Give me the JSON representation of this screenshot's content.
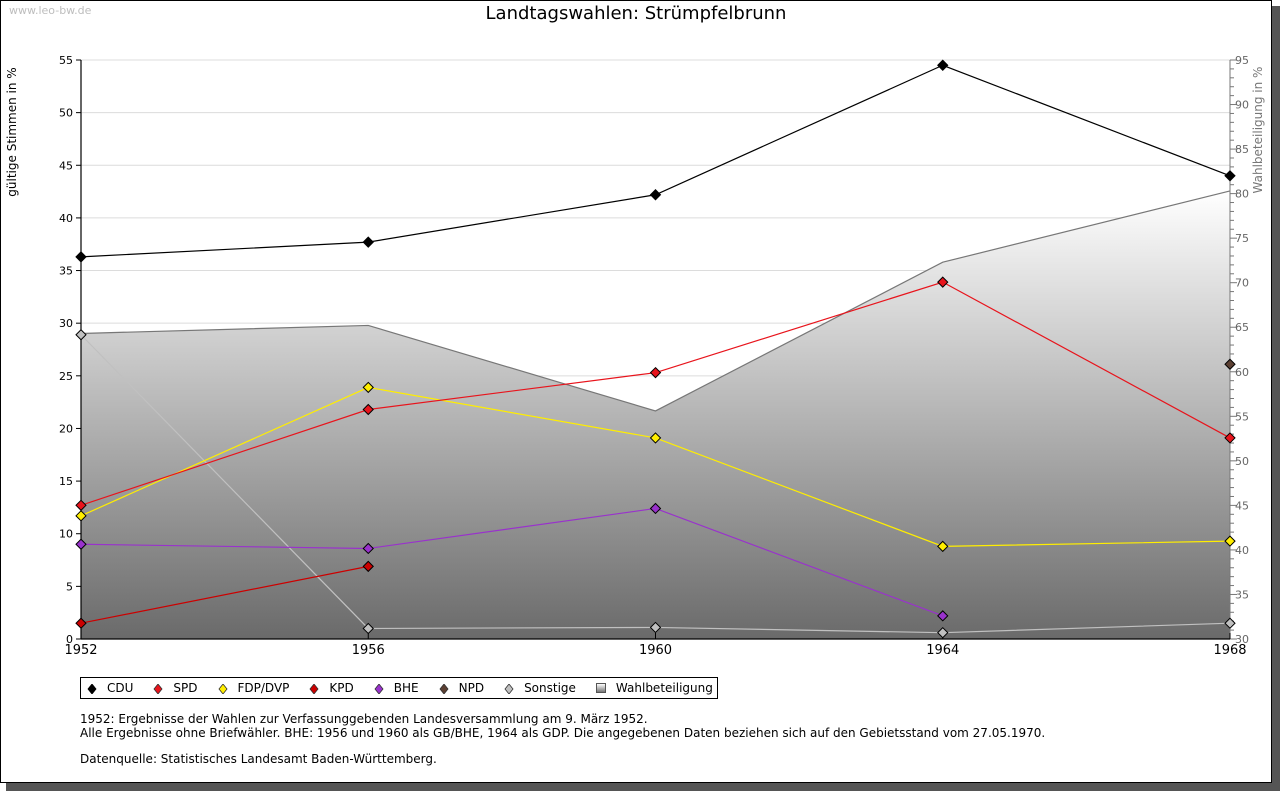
{
  "watermark": "www.leo-bw.de",
  "chart_data": {
    "type": "line",
    "title": "Landtagswahlen: Strümpfelbrunn",
    "xlabel": "",
    "ylabel": "gültige Stimmen in %",
    "y2label": "Wahlbeteiligung in %",
    "x": [
      1952,
      1956,
      1960,
      1964,
      1968
    ],
    "ylim": [
      0,
      55
    ],
    "y2lim": [
      30,
      95
    ],
    "yticks": [
      0,
      5,
      10,
      15,
      20,
      25,
      30,
      35,
      40,
      45,
      50,
      55
    ],
    "y2ticks": [
      30,
      35,
      40,
      45,
      50,
      55,
      60,
      65,
      70,
      75,
      80,
      85,
      90,
      95
    ],
    "grid": true,
    "legend_position": "bottom",
    "series": [
      {
        "name": "CDU",
        "color": "#000000",
        "axis": "left",
        "values": [
          36.3,
          37.7,
          42.2,
          54.5,
          44.0
        ]
      },
      {
        "name": "SPD",
        "color": "#e8141c",
        "axis": "left",
        "values": [
          12.7,
          21.8,
          25.3,
          33.9,
          19.1
        ]
      },
      {
        "name": "FDP/DVP",
        "color": "#ffee00",
        "axis": "left",
        "values": [
          11.7,
          23.9,
          19.1,
          8.8,
          9.3
        ]
      },
      {
        "name": "KPD",
        "color": "#cc0000",
        "axis": "left",
        "values": [
          1.5,
          6.9,
          null,
          null,
          null
        ]
      },
      {
        "name": "BHE",
        "color": "#9932cc",
        "axis": "left",
        "values": [
          9.0,
          8.6,
          12.4,
          2.2,
          null
        ]
      },
      {
        "name": "NPD",
        "color": "#5c4033",
        "axis": "left",
        "values": [
          null,
          null,
          null,
          null,
          26.1
        ]
      },
      {
        "name": "Sonstige",
        "color": "#c0c0c0",
        "axis": "left",
        "values": [
          28.9,
          1.0,
          1.1,
          0.6,
          1.5
        ]
      },
      {
        "name": "Wahlbeteiligung",
        "color": "#888888",
        "axis": "right",
        "type": "area",
        "values": [
          64.3,
          65.2,
          55.6,
          72.3,
          80.3
        ]
      }
    ]
  },
  "notes": {
    "line1": "1952: Ergebnisse der Wahlen zur Verfassunggebenden Landesversammlung am 9. März 1952.",
    "line2": "Alle Ergebnisse ohne Briefwähler. BHE: 1956 und 1960 als GB/BHE, 1964 als GDP. Die angegebenen Daten beziehen sich auf den Gebietsstand vom 27.05.1970.",
    "source": "Datenquelle: Statistisches Landesamt Baden-Württemberg."
  }
}
